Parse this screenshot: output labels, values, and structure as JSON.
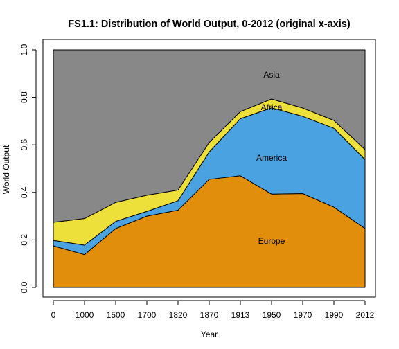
{
  "chart_data": {
    "type": "area",
    "stacked": true,
    "title": "FS1.1: Distribution of World Output, 0-2012 (original x-axis)",
    "xlabel": "Year",
    "ylabel": "World Output",
    "categories": [
      "0",
      "1000",
      "1500",
      "1700",
      "1820",
      "1870",
      "1913",
      "1950",
      "1970",
      "1990",
      "2012"
    ],
    "ylim": [
      0,
      1
    ],
    "yticks": [
      "0.0",
      "0.2",
      "0.4",
      "0.6",
      "0.8",
      "1.0"
    ],
    "grid": false,
    "series": [
      {
        "name": "Europe",
        "color": "#e08e0b",
        "values": [
          0.175,
          0.138,
          0.248,
          0.3,
          0.325,
          0.455,
          0.47,
          0.393,
          0.395,
          0.338,
          0.248
        ]
      },
      {
        "name": "America",
        "color": "#4aa3e0",
        "values": [
          0.023,
          0.04,
          0.03,
          0.02,
          0.04,
          0.115,
          0.24,
          0.363,
          0.325,
          0.332,
          0.29
        ]
      },
      {
        "name": "Africa",
        "color": "#ede03a",
        "values": [
          0.076,
          0.112,
          0.08,
          0.068,
          0.045,
          0.04,
          0.03,
          0.037,
          0.035,
          0.033,
          0.042
        ]
      },
      {
        "name": "Asia",
        "color": "#888888",
        "values": [
          0.726,
          0.71,
          0.642,
          0.612,
          0.59,
          0.39,
          0.26,
          0.207,
          0.245,
          0.297,
          0.42
        ]
      }
    ],
    "region_labels": [
      {
        "text": "Europe",
        "x": "1950",
        "y": 0.195
      },
      {
        "text": "America",
        "x": "1950",
        "y": 0.545
      },
      {
        "text": "Africa",
        "x": "1950",
        "y": 0.758
      },
      {
        "text": "Asia",
        "x": "1950",
        "y": 0.895
      }
    ]
  }
}
